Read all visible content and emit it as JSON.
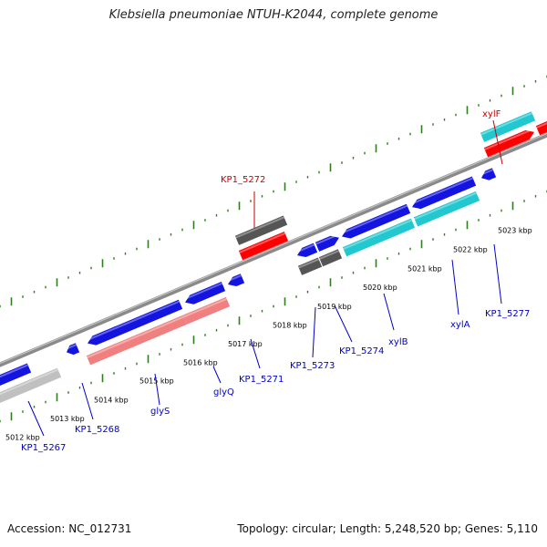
{
  "title": "Klebsiella pneumoniae NTUH-K2044, complete genome",
  "footer": {
    "accession": "Accession: NC_012731",
    "topology": "Topology: circular; Length: 5,248,520 bp; Genes: 5,110"
  },
  "colors": {
    "backbone": "#8a8a8a",
    "tick": "#2e7d1e",
    "gene_blue": "#1414e0",
    "gene_dark_gray": "#555555",
    "gene_light_gray": "#c0c0c0",
    "gene_red": "#ff0000",
    "gene_pink": "#f08080",
    "gene_cyan": "#22c8d0",
    "label_blue": "#0000cc",
    "label_red": "#cc0000"
  },
  "scale_labels": [
    "5012 kbp",
    "5013 kbp",
    "5014 kbp",
    "5015 kbp",
    "5016 kbp",
    "5017 kbp",
    "5018 kbp",
    "5019 kbp",
    "5020 kbp",
    "5021 kbp",
    "5022 kbp",
    "5023 kbp"
  ],
  "gene_labels": [
    {
      "text": "KP1_5267",
      "color": "blue"
    },
    {
      "text": "KP1_5268",
      "color": "blue"
    },
    {
      "text": "glyS",
      "color": "blue"
    },
    {
      "text": "glyQ",
      "color": "blue"
    },
    {
      "text": "KP1_5271",
      "color": "blue"
    },
    {
      "text": "KP1_5273",
      "color": "blue"
    },
    {
      "text": "KP1_5274",
      "color": "blue"
    },
    {
      "text": "xylB",
      "color": "blue"
    },
    {
      "text": "xylA",
      "color": "blue"
    },
    {
      "text": "KP1_5277",
      "color": "blue"
    },
    {
      "text": "KP1_5272",
      "color": "red"
    },
    {
      "text": "xylF",
      "color": "red"
    }
  ]
}
